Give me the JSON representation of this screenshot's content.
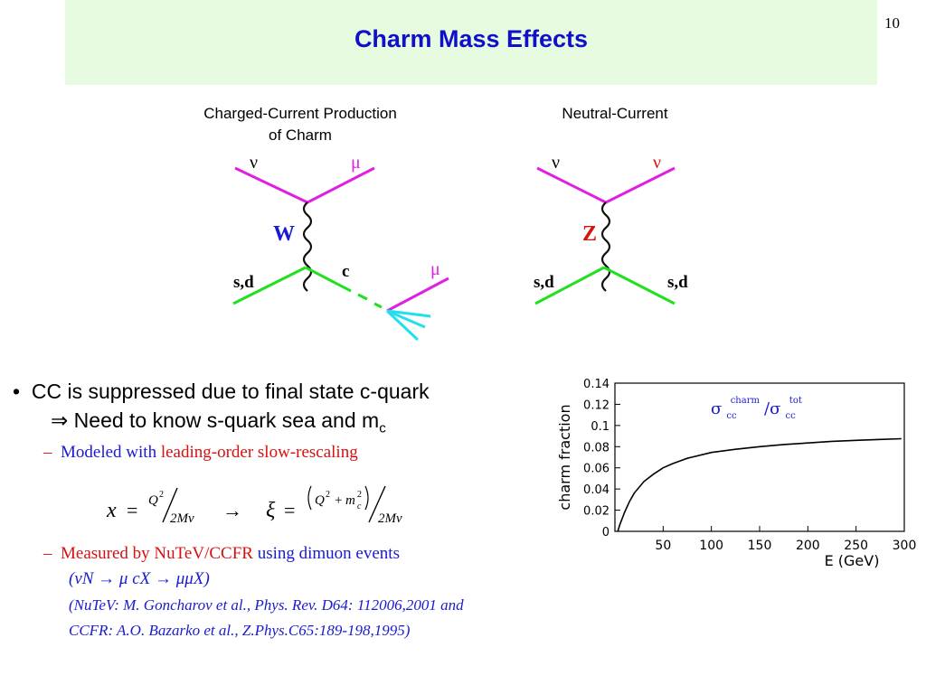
{
  "slide": {
    "title": "Charm Mass Effects",
    "number": "10"
  },
  "diagrams": {
    "charged_current": {
      "label_line1": "Charged-Current Production",
      "label_line2": "of Charm",
      "nu": "ν",
      "mu_top": "μ",
      "boson": "W",
      "quark_in": "s,d",
      "charm": "c",
      "mu_out": "μ"
    },
    "neutral_current": {
      "label": "Neutral-Current",
      "nu_in": "ν",
      "nu_out": "ν",
      "boson": "Z",
      "quark_in": "s,d",
      "quark_out": "s,d"
    }
  },
  "bullets": {
    "main_line1": "CC is suppressed due to final state c-quark",
    "arrow": "⇒",
    "main_line2_text": "Need to know s-quark sea and m",
    "main_line2_sub": "c",
    "dash1_blue": "Modeled with",
    "dash1_red": "leading-order slow-rescaling",
    "eq_x": "x",
    "eq_eq": "=",
    "eq_Q": "Q",
    "eq_sq": "2",
    "eq_2M": "2Mν",
    "eq_arrow": "→",
    "eq_xi": "ξ",
    "eq_plus": "+",
    "eq_m": "m",
    "eq_c": "c",
    "dash2_red": "Measured by NuTeV/CCFR",
    "dash2_blue": "using dimuon events",
    "process": "(νN  → μ cX → μμX)",
    "ref_line1": "(NuTeV: M. Goncharov et al., Phys. Rev. D64: 112006,2001 and",
    "ref_line2": "CCFR: A.O. Bazarko et al., Z.Phys.C65:189-198,1995)"
  },
  "colors": {
    "title_blue": "#1010c8",
    "title_band": "#e6fbe0",
    "lepton_magenta": "#e020e0",
    "quark_green": "#20e020",
    "jet_cyan": "#20e0f0",
    "text_blue": "#1a1ad0",
    "text_red": "#d81010"
  },
  "chart_data": {
    "type": "line",
    "ylabel": "charm fraction",
    "xlabel": "E (GeV)",
    "legend": "σcc charm/σcc tot",
    "legend_parts": [
      "σ",
      "cc",
      "charm",
      "/σ",
      "cc",
      "tot"
    ],
    "xlim": [
      0,
      300
    ],
    "ylim": [
      0,
      0.14
    ],
    "x_ticks": [
      "50",
      "100",
      "150",
      "200",
      "250",
      "300"
    ],
    "x_tick_values": [
      50,
      100,
      150,
      200,
      250,
      300
    ],
    "y_ticks": [
      "0",
      "0.02",
      "0.04",
      "0.06",
      "0.08",
      "0.1",
      "0.12",
      "0.14"
    ],
    "y_tick_values": [
      0,
      0.02,
      0.04,
      0.06,
      0.08,
      0.1,
      0.12,
      0.14
    ],
    "series": [
      {
        "x": [
          3,
          5,
          10,
          15,
          20,
          30,
          40,
          50,
          60,
          75,
          100,
          125,
          150,
          175,
          200,
          225,
          250,
          275,
          297
        ],
        "y": [
          0.0,
          0.006,
          0.018,
          0.028,
          0.036,
          0.047,
          0.054,
          0.06,
          0.064,
          0.069,
          0.0745,
          0.0775,
          0.08,
          0.082,
          0.0835,
          0.085,
          0.086,
          0.0868,
          0.0875
        ]
      }
    ]
  }
}
